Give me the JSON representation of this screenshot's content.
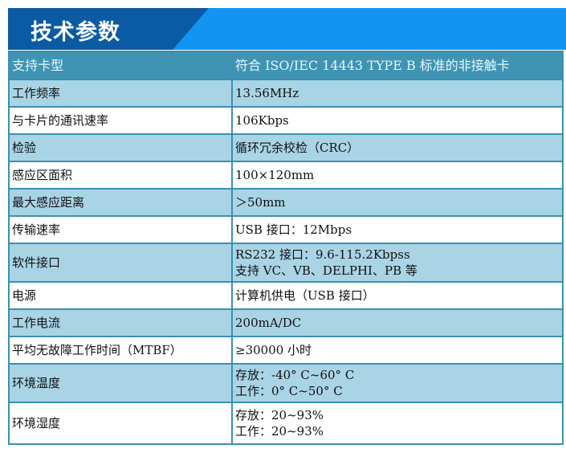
{
  "title": "技术参数",
  "colors": {
    "banner_dark": "#0a5ba3",
    "banner_light": "#1294f2",
    "header_row": "#3f94b4",
    "row_alt": "#a9d4e5",
    "border": "#3a90b0"
  },
  "header": {
    "key": "支持卡型",
    "value": "符合 ISO/IEC 14443 TYPE B 标准的非接触卡"
  },
  "rows": [
    {
      "key": "工作频率",
      "lines": [
        "13.56MHz"
      ]
    },
    {
      "key": "与卡片的通讯速率",
      "lines": [
        "106Kbps"
      ]
    },
    {
      "key": "检验",
      "lines": [
        "循环冗余校检（CRC）"
      ]
    },
    {
      "key": "感应区面积",
      "lines": [
        "100×120mm"
      ]
    },
    {
      "key": "最大感应距离",
      "lines": [
        "＞50mm"
      ]
    },
    {
      "key": "传输速率",
      "lines": [
        "USB 接口：12Mbps"
      ]
    },
    {
      "key": "软件接口",
      "lines": [
        "RS232 接口：9.6-115.2Kbpss",
        "支持 VC、VB、DELPHI、PB 等"
      ]
    },
    {
      "key": "电源",
      "lines": [
        "计算机供电（USB 接口）"
      ]
    },
    {
      "key": "工作电流",
      "lines": [
        "200mA/DC"
      ]
    },
    {
      "key": "平均无故障工作时间（MTBF）",
      "lines": [
        "≥30000 小时"
      ]
    },
    {
      "key": "环境温度",
      "lines": [
        "存放：-40° C~60° C",
        "工作：0° C~50° C"
      ]
    },
    {
      "key": "环境湿度",
      "lines": [
        "存放：20~93%",
        "工作：20~93%"
      ]
    }
  ]
}
